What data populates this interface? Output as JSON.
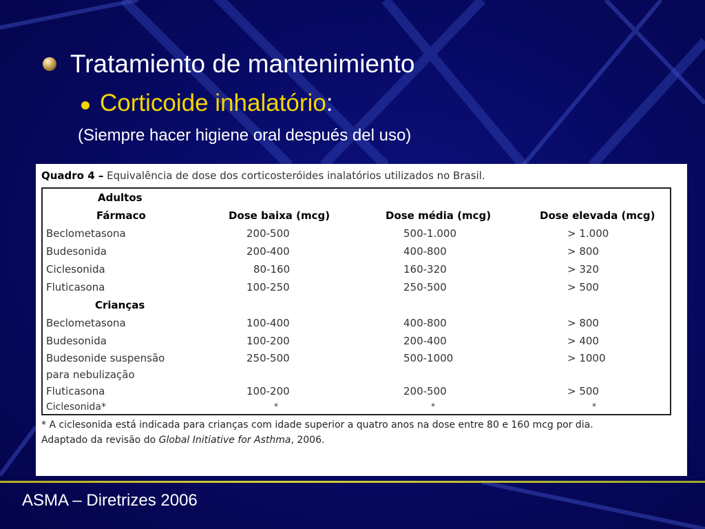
{
  "slide": {
    "title": "Tratamiento de mantenimiento",
    "subtitle_highlight": "Corticoide inhalatório",
    "subtitle_colon": ":",
    "note": "(Siempre hacer higiene oral después del uso)",
    "footer": "ASMA – Diretrizes 2006"
  },
  "table": {
    "caption_bold": "Quadro 4 –",
    "caption_text": " Equivalência de dose dos corticosteróides inalatórios utilizados no Brasil.",
    "columns": [
      "Fármaco",
      "Dose baixa (mcg)",
      "Dose média (mcg)",
      "Dose elevada (mcg)"
    ],
    "group_adults": "Adultos",
    "group_children": "Crianças",
    "adults": [
      [
        "Beclometasona",
        "200-500",
        "500-1.000",
        "> 1.000"
      ],
      [
        "Budesonida",
        "200-400",
        "400-800",
        "> 800"
      ],
      [
        "Ciclesonida",
        "80-160",
        "160-320",
        "> 320"
      ],
      [
        "Fluticasona",
        "100-250",
        "250-500",
        "> 500"
      ]
    ],
    "children": [
      [
        "Beclometasona",
        "100-400",
        "400-800",
        "> 800"
      ],
      [
        "Budesonida",
        "100-200",
        "200-400",
        "> 400"
      ],
      [
        "Budesonide suspensão",
        "250-500",
        "500-1000",
        "> 1000"
      ],
      [
        "para nebulização",
        "",
        "",
        ""
      ],
      [
        "Fluticasona",
        "100-200",
        "200-500",
        "> 500"
      ],
      [
        "Ciclesonida*",
        "*",
        "*",
        "*"
      ]
    ],
    "footnote1": "* A ciclesonida está indicada para crianças com idade superior a quatro anos na dose entre 80 e 160 mcg por dia.",
    "footnote2_a": "Adaptado da revisão do ",
    "footnote2_italic": "Global Initiative for Asthma",
    "footnote2_b": ", 2006."
  }
}
